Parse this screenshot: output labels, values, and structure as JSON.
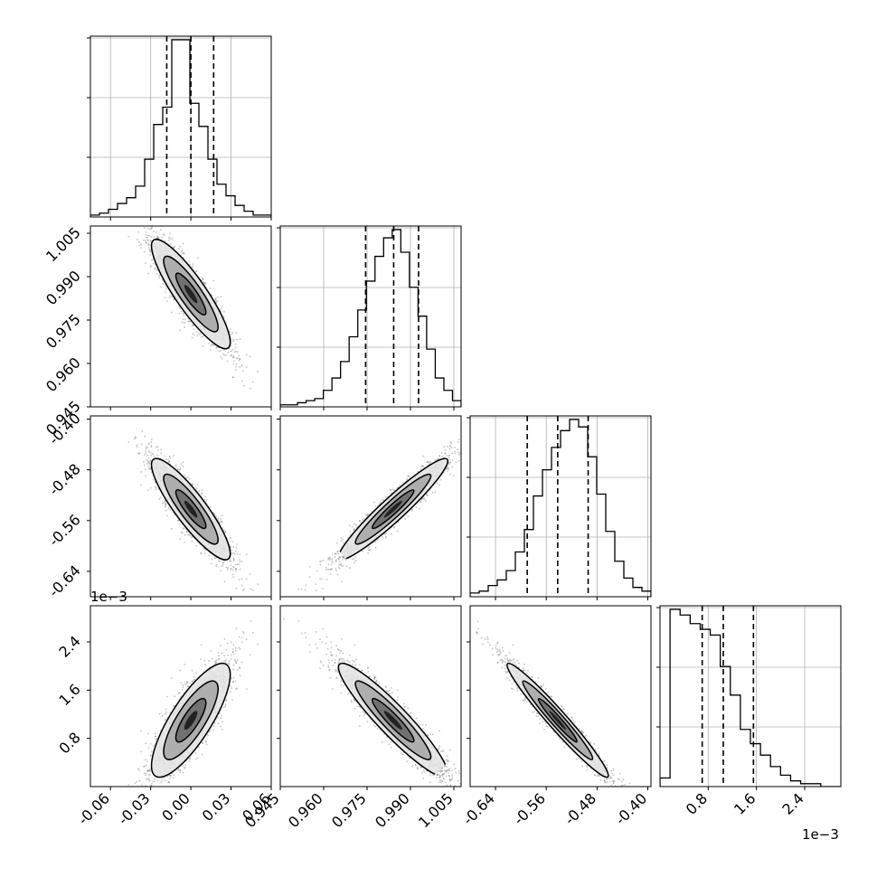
{
  "chart_data": {
    "type": "corner",
    "params": [
      {
        "range": [
          -0.075,
          0.06
        ],
        "ticks": [
          "-0.06",
          "-0.03",
          "0.00",
          "0.03",
          "0.06"
        ],
        "tickvals": [
          -0.06,
          -0.03,
          0.0,
          0.03,
          0.06
        ],
        "quantiles": [
          -0.018,
          0.0,
          0.017
        ],
        "mean": 0.0,
        "sd": 0.014
      },
      {
        "range": [
          0.945,
          1.0075
        ],
        "ticks": [
          "0.945",
          "0.960",
          "0.975",
          "0.990",
          "1.005"
        ],
        "tickvals": [
          0.945,
          0.96,
          0.975,
          0.99,
          1.005
        ],
        "quantiles": [
          0.9745,
          0.9842,
          0.9928
        ],
        "mean": 0.984,
        "sd": 0.009
      },
      {
        "range": [
          -0.68,
          -0.395
        ],
        "ticks": [
          "-0.64",
          "-0.56",
          "-0.48",
          "-0.40"
        ],
        "tickvals": [
          -0.64,
          -0.56,
          -0.48,
          -0.4
        ],
        "quantiles": [
          -0.59,
          -0.542,
          -0.494
        ],
        "mean": -0.542,
        "sd": 0.038
      },
      {
        "range": [
          0.0,
          3.0
        ],
        "ticks": [
          "0.8",
          "1.6",
          "2.4"
        ],
        "tickvals": [
          0.8,
          1.6,
          2.4
        ],
        "quantiles": [
          0.7,
          1.05,
          1.55
        ],
        "mean": 1.1,
        "sd": 0.45,
        "offset_label": "1e−3"
      }
    ],
    "histograms": [
      {
        "counts": [
          1,
          2,
          4,
          7,
          10,
          16,
          30,
          48,
          57,
          92,
          92,
          59,
          47,
          30,
          17,
          11,
          6,
          3,
          1,
          1
        ]
      },
      {
        "counts": [
          1,
          1,
          2,
          3,
          4,
          8,
          14,
          22,
          34,
          47,
          61,
          73,
          82,
          86,
          75,
          58,
          44,
          28,
          14,
          8,
          3
        ]
      },
      {
        "counts": [
          2,
          3,
          6,
          9,
          14,
          24,
          36,
          54,
          68,
          80,
          89,
          95,
          91,
          75,
          55,
          35,
          19,
          10,
          5,
          3
        ]
      },
      {
        "counts": [
          3,
          62,
          60,
          57,
          55,
          53,
          42,
          32,
          20,
          15,
          11,
          7,
          4,
          2,
          1,
          1,
          0,
          0
        ]
      }
    ],
    "correlations": [
      [
        1.0,
        -0.88,
        -0.88,
        0.8
      ],
      [
        -0.88,
        1.0,
        0.95,
        -0.93
      ],
      [
        -0.88,
        0.95,
        1.0,
        -0.97
      ],
      [
        0.8,
        -0.93,
        -0.97,
        1.0
      ]
    ]
  }
}
